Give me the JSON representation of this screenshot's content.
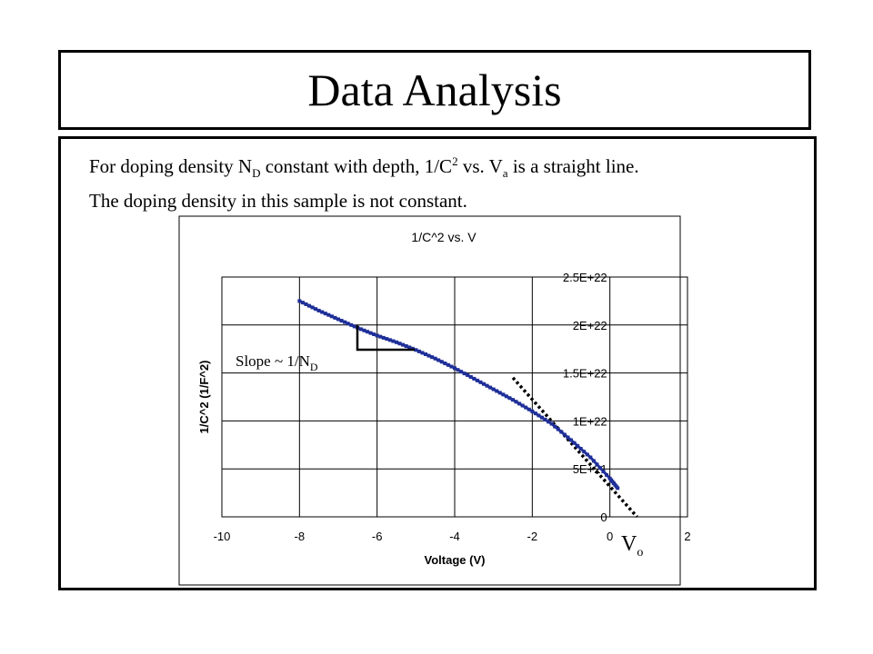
{
  "slide": {
    "title": "Data Analysis",
    "line1": {
      "a": "For doping density N",
      "a_sub": "D",
      "b": " constant with depth, 1/C",
      "b_sup": "2",
      "c": " vs. V",
      "c_sub": "a",
      "d": " is a straight line."
    },
    "line2": "The doping density in this sample is not constant."
  },
  "chart_data": {
    "type": "line",
    "title": "1/C^2 vs. V",
    "xlabel": "Voltage (V)",
    "ylabel": "1/C^2 (1/F^2)",
    "xlim": [
      -10,
      2
    ],
    "ylim": [
      0,
      2.5e+22
    ],
    "x_ticks": [
      "-10",
      "-8",
      "-6",
      "-4",
      "-2",
      "0",
      "2"
    ],
    "y_ticks": [
      "0",
      "5E+21",
      "1E+22",
      "1.5E+22",
      "2E+22",
      "2.5E+22"
    ],
    "grid": true,
    "series": [
      {
        "x": [
          -8.0,
          -7.5,
          -7.0,
          -6.5,
          -6.0,
          -5.5,
          -5.0,
          -4.5,
          -4.0,
          -3.5,
          -3.0,
          -2.5,
          -2.0,
          -1.5,
          -1.0,
          -0.5,
          0.0,
          0.2
        ],
        "y": [
          2.25e+22,
          2.15e+22,
          2.06e+22,
          1.97e+22,
          1.89e+22,
          1.82e+22,
          1.74e+22,
          1.65e+22,
          1.55e+22,
          1.44e+22,
          1.33e+22,
          1.22e+22,
          1.1e+22,
          9.7e+21,
          8e+21,
          6.2e+21,
          4e+21,
          3e+21
        ]
      }
    ],
    "tangent_line": {
      "x": [
        -2.5,
        0.7
      ],
      "y": [
        1.45e+22,
        0.0
      ]
    },
    "annotations": {
      "slope_label": "Slope ~ 1/N",
      "slope_sub": "D",
      "vo_label": "V",
      "vo_sub": "o"
    },
    "colors": {
      "series": "#1f2f99",
      "tangent": "#000000",
      "grid": "#000000"
    }
  }
}
